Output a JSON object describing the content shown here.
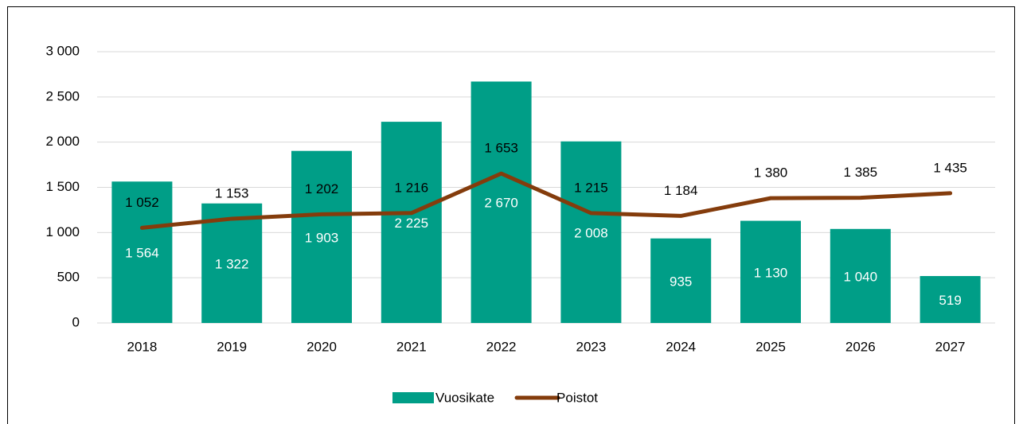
{
  "chart_data": {
    "type": "bar",
    "categories": [
      "2018",
      "2019",
      "2020",
      "2021",
      "2022",
      "2023",
      "2024",
      "2025",
      "2026",
      "2027"
    ],
    "series": [
      {
        "name": "Vuosikate",
        "type": "bar",
        "color": "#009e87",
        "values": [
          1564,
          1322,
          1903,
          2225,
          2670,
          2008,
          935,
          1130,
          1040,
          519
        ],
        "value_labels": [
          "1 564",
          "1 322",
          "1 903",
          "2 225",
          "2 670",
          "2 008",
          "935",
          "1 130",
          "1 040",
          "519"
        ]
      },
      {
        "name": "Poistot",
        "type": "line",
        "color": "#843c0c",
        "values": [
          1052,
          1153,
          1202,
          1216,
          1653,
          1215,
          1184,
          1380,
          1385,
          1435
        ],
        "value_labels": [
          "1 052",
          "1 153",
          "1 202",
          "1 216",
          "1 653",
          "1 215",
          "1 184",
          "1 380",
          "1 385",
          "1 435"
        ]
      }
    ],
    "ylim": [
      0,
      3000
    ],
    "yticks": [
      0,
      500,
      {
        "value": 1000,
        "label": "1 000"
      },
      {
        "value": 1500,
        "label": "1 500"
      },
      {
        "value": 2000,
        "label": "2 000"
      },
      {
        "value": 2500,
        "label": "2 500"
      },
      {
        "value": 3000,
        "label": "3 000"
      }
    ],
    "grid": true,
    "legend": "bottom"
  }
}
